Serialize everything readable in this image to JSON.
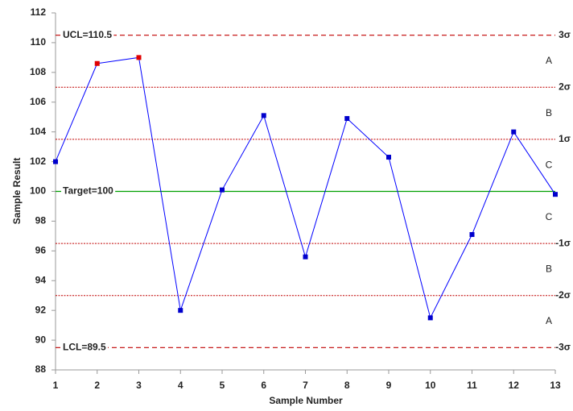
{
  "chart_data": {
    "type": "line",
    "x_label": "Sample Number",
    "y_label": "Sample Result",
    "x": [
      1,
      2,
      3,
      4,
      5,
      6,
      7,
      8,
      9,
      10,
      11,
      12,
      13
    ],
    "series": [
      {
        "color": "#0000ff",
        "values": [
          102.0,
          108.6,
          109.0,
          92.0,
          100.1,
          105.1,
          95.6,
          104.9,
          102.3,
          91.5,
          97.1,
          104.0,
          99.8
        ],
        "point_colors": [
          "#0000cc",
          "#e00000",
          "#e00000",
          "#0000cc",
          "#0000cc",
          "#0000cc",
          "#0000cc",
          "#0000cc",
          "#0000cc",
          "#0000cc",
          "#0000cc",
          "#0000cc",
          "#0000cc"
        ]
      }
    ],
    "xlim": [
      1,
      13
    ],
    "xticks": [
      1,
      2,
      3,
      4,
      5,
      6,
      7,
      8,
      9,
      10,
      11,
      12,
      13
    ],
    "ylim": [
      88,
      112
    ],
    "yticks": [
      88,
      90,
      92,
      94,
      96,
      98,
      100,
      102,
      104,
      106,
      108,
      110,
      112
    ],
    "limits": [
      {
        "value": 110.5,
        "label": "UCL=110.5",
        "right_label": "3σ",
        "color": "#c00000",
        "style": "dashed"
      },
      {
        "value": 107,
        "right_label": "2σ",
        "color": "#c00000",
        "style": "dotted"
      },
      {
        "value": 103.5,
        "right_label": "1σ",
        "color": "#c00000",
        "style": "dotted"
      },
      {
        "value": 100,
        "label": "Target=100",
        "color": "#00a000",
        "style": "solid"
      },
      {
        "value": 96.5,
        "right_label": "-1σ",
        "color": "#c00000",
        "style": "dotted"
      },
      {
        "value": 93,
        "right_label": "-2σ",
        "color": "#c00000",
        "style": "dotted"
      },
      {
        "value": 89.5,
        "label": "LCL=89.5",
        "right_label": "-3σ",
        "color": "#c00000",
        "style": "dashed"
      }
    ],
    "zones": [
      "A",
      "B",
      "C",
      "C",
      "B",
      "A"
    ]
  }
}
